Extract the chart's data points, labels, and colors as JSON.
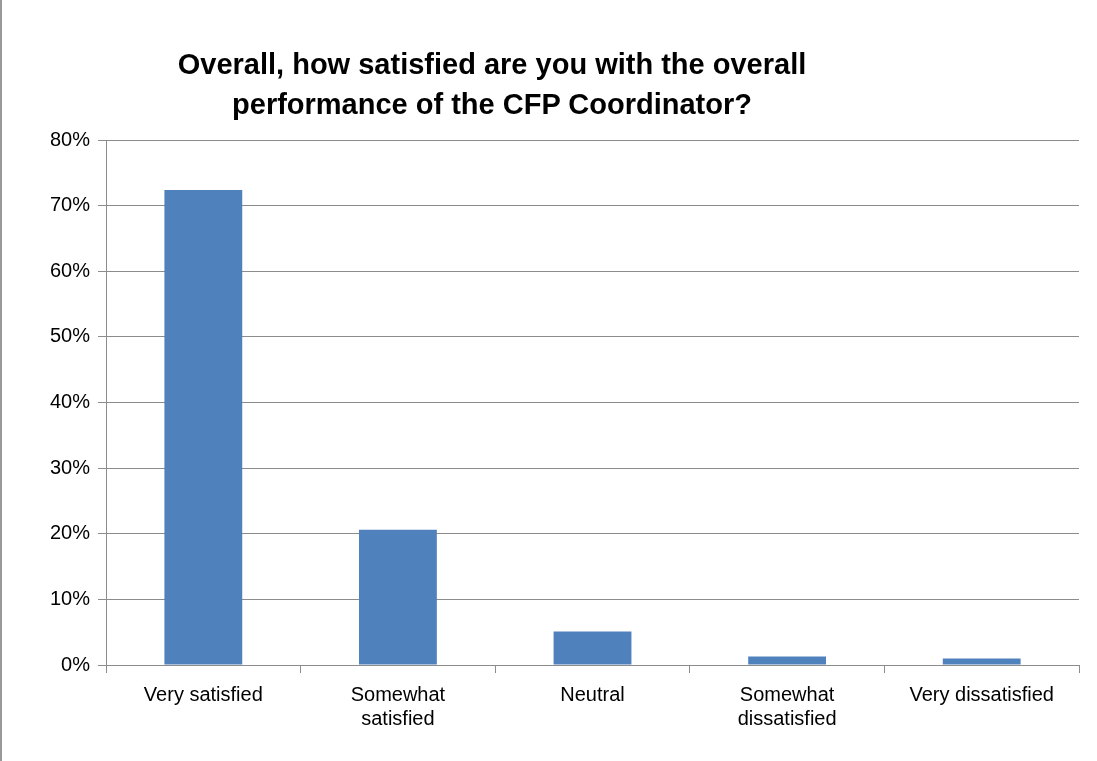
{
  "chart_data": {
    "type": "bar",
    "title": "Overall, how satisfied are you with the overall performance of the CFP Coordinator?",
    "categories": [
      "Very satisfied",
      "Somewhat satisfied",
      "Neutral",
      "Somewhat dissatisfied",
      "Very dissatisfied"
    ],
    "values": [
      72.4,
      20.6,
      5.1,
      1.3,
      1.0
    ],
    "color": "#4f81bd",
    "ylim": [
      0,
      80
    ],
    "yticks": [
      {
        "value": 0,
        "label": "0%"
      },
      {
        "value": 10,
        "label": "10%"
      },
      {
        "value": 20,
        "label": "20%"
      },
      {
        "value": 30,
        "label": "30%"
      },
      {
        "value": 40,
        "label": "40%"
      },
      {
        "value": 50,
        "label": "50%"
      },
      {
        "value": 60,
        "label": "60%"
      },
      {
        "value": 70,
        "label": "70%"
      },
      {
        "value": 80,
        "label": "80%"
      }
    ],
    "grid": "y",
    "legend": false
  }
}
